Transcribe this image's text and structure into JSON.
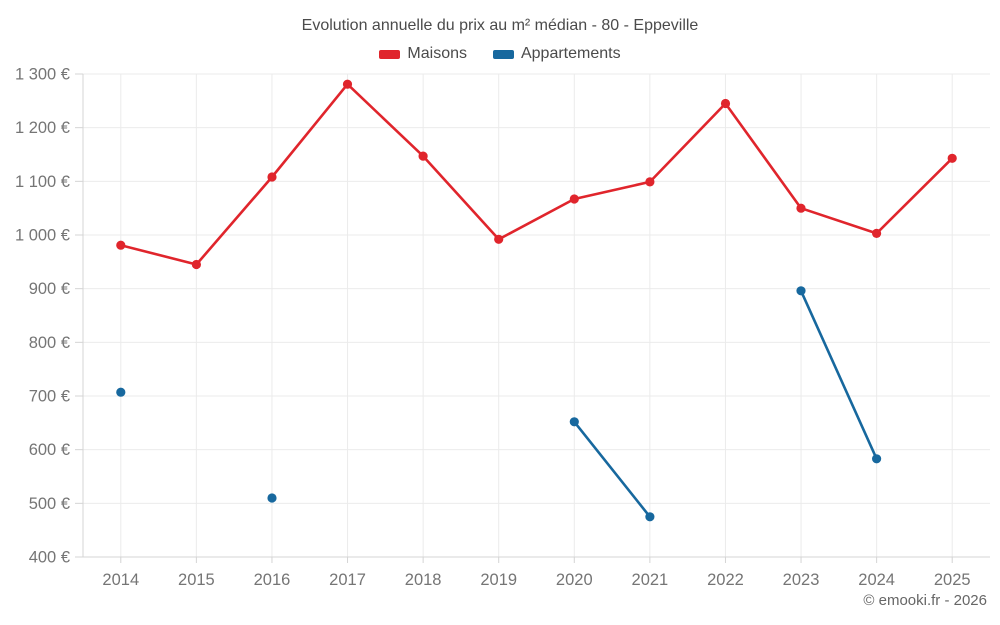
{
  "page": {
    "footer": "© emooki.fr - 2026"
  },
  "palette": {
    "maisons": "#e0252c",
    "appartements": "#17689e",
    "grid": "#ebebeb",
    "axis": "#d4d4d4",
    "tick_label": "#757575",
    "title": "#4b4b4b",
    "footer": "#666666"
  },
  "chart_data": {
    "type": "line",
    "title": "Evolution annuelle du prix au m² médian - 80 - Eppeville",
    "xlabel": "",
    "ylabel": "",
    "categories": [
      "2014",
      "2015",
      "2016",
      "2017",
      "2018",
      "2019",
      "2020",
      "2021",
      "2022",
      "2023",
      "2024",
      "2025"
    ],
    "series": [
      {
        "name": "Maisons",
        "color": "#e0252c",
        "values": [
          981,
          945,
          1108,
          1281,
          1147,
          992,
          1067,
          1099,
          1245,
          1050,
          1003,
          1143
        ]
      },
      {
        "name": "Appartements",
        "color": "#17689e",
        "values": [
          707,
          null,
          510,
          null,
          null,
          null,
          652,
          475,
          null,
          896,
          583,
          null
        ]
      }
    ],
    "y_ticks": [
      400,
      500,
      600,
      700,
      800,
      900,
      1000,
      1100,
      1200,
      1300
    ],
    "y_tick_labels": [
      "400 €",
      "500 €",
      "600 €",
      "700 €",
      "800 €",
      "900 €",
      "1 000 €",
      "1 100 €",
      "1 200 €",
      "1 300 €"
    ],
    "ylim": [
      400,
      1300
    ],
    "grid": true,
    "legend_position": "top",
    "currency_suffix": " €"
  }
}
